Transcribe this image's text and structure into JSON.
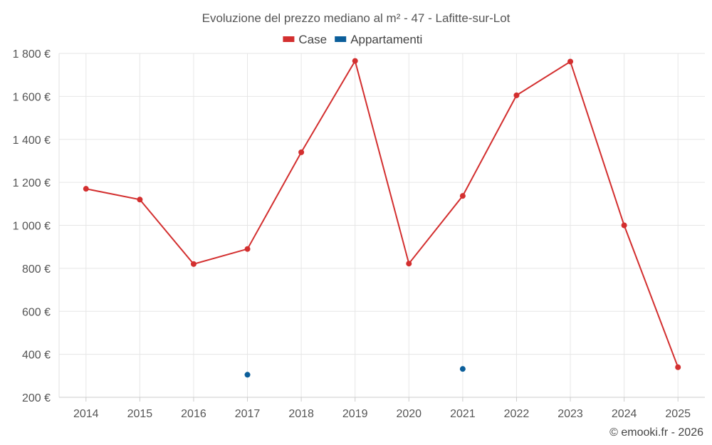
{
  "chart_data": {
    "type": "line",
    "title": "Evoluzione del prezzo mediano al m² - 47 - Lafitte-sur-Lot",
    "categories": [
      "2014",
      "2015",
      "2016",
      "2017",
      "2018",
      "2019",
      "2020",
      "2021",
      "2022",
      "2023",
      "2024",
      "2025"
    ],
    "ylim": [
      200,
      1800
    ],
    "yticks": [
      200,
      400,
      600,
      800,
      1000,
      1200,
      1400,
      1600,
      1800
    ],
    "ytick_labels": [
      "200 €",
      "400 €",
      "600 €",
      "800 €",
      "1 000 €",
      "1 200 €",
      "1 400 €",
      "1 600 €",
      "1 800 €"
    ],
    "grid": true,
    "legend_position": "top-center",
    "series": [
      {
        "name": "Case",
        "color": "#d32f2f",
        "values": [
          1170,
          1120,
          820,
          890,
          1340,
          1765,
          822,
          1137,
          1605,
          1762,
          1000,
          340
        ]
      },
      {
        "name": "Appartamenti",
        "color": "#0b5e9a",
        "values": [
          null,
          null,
          null,
          305,
          null,
          null,
          null,
          332,
          null,
          null,
          null,
          null
        ]
      }
    ]
  },
  "footer": {
    "copyright": "© emooki.fr - 2026"
  }
}
